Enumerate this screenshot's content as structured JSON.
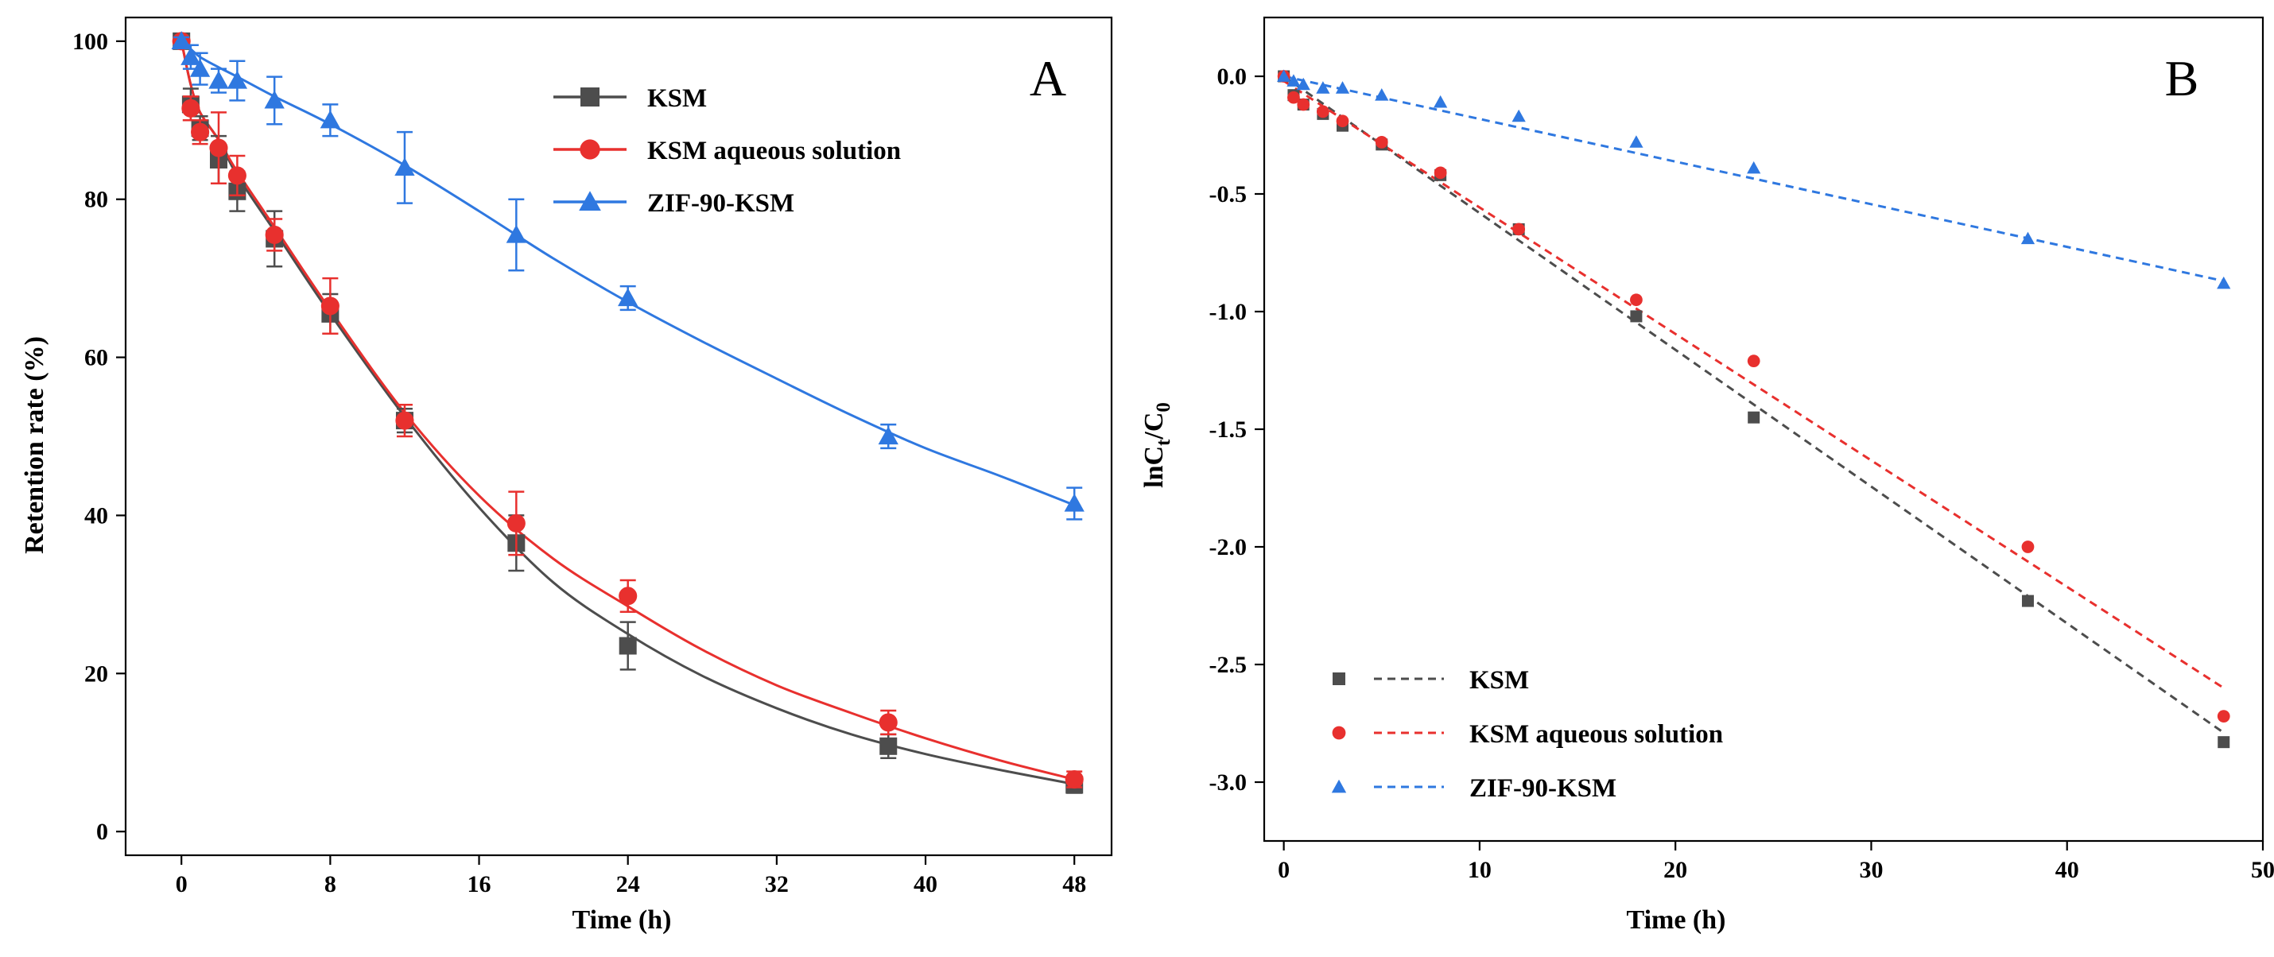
{
  "figure": {
    "caption": ""
  },
  "chart_data": [
    {
      "panel": "A",
      "type": "line",
      "xlabel": "Time (h)",
      "ylabel": "Retention rate (%)",
      "xlim": [
        -3,
        50
      ],
      "ylim": [
        -3,
        103
      ],
      "xticks": [
        0,
        8,
        16,
        24,
        32,
        40,
        48
      ],
      "yticks": [
        0,
        20,
        40,
        60,
        80,
        100
      ],
      "legend_position": "top-center",
      "series": [
        {
          "name": "KSM",
          "color": "#4d4d4d",
          "marker": "square",
          "x": [
            0,
            0.5,
            1,
            2,
            3,
            5,
            8,
            12,
            18,
            24,
            38,
            48
          ],
          "y": [
            100,
            92,
            89,
            85,
            81,
            75,
            65.5,
            52,
            36.5,
            23.5,
            10.8,
            5.9
          ],
          "err": [
            0.5,
            2,
            1.5,
            3,
            2.5,
            3.5,
            2.5,
            1.5,
            3.5,
            3,
            1.5,
            1.0
          ],
          "fit_x": [
            0,
            0.5,
            1,
            2,
            3,
            5,
            8,
            12,
            16,
            20,
            24,
            28,
            32,
            36,
            40,
            44,
            48
          ],
          "fit_y": [
            100,
            94.5,
            91,
            87.5,
            83,
            76,
            65.5,
            52.5,
            41,
            31.5,
            25,
            19.7,
            15.6,
            12.3,
            9.8,
            7.8,
            6.0
          ]
        },
        {
          "name": "KSM aqueous solution",
          "color": "#e8302e",
          "marker": "circle",
          "x": [
            0,
            0.5,
            1,
            2,
            3,
            5,
            8,
            12,
            18,
            24,
            38,
            48
          ],
          "y": [
            100,
            91.5,
            88.5,
            86.5,
            83,
            75.5,
            66.5,
            52,
            39,
            29.8,
            13.8,
            6.6
          ],
          "err": [
            0.5,
            1.5,
            1.5,
            4.5,
            2.5,
            2,
            3.5,
            2,
            4,
            2,
            1.5,
            1.0
          ],
          "fit_x": [
            0,
            0.5,
            1,
            2,
            3,
            5,
            8,
            12,
            16,
            20,
            24,
            28,
            32,
            36,
            40,
            44,
            48
          ],
          "fit_y": [
            100,
            94.5,
            91,
            87.5,
            83.5,
            76.5,
            66,
            53,
            42.5,
            34.5,
            28.5,
            23,
            18.5,
            15,
            11.8,
            9,
            6.6
          ]
        },
        {
          "name": "ZIF-90-KSM",
          "color": "#2f78e0",
          "marker": "triangle",
          "x": [
            0,
            0.5,
            1,
            2,
            3,
            5,
            8,
            12,
            18,
            24,
            38,
            48
          ],
          "y": [
            100,
            98,
            96.5,
            95,
            95,
            92.5,
            90,
            84,
            75.5,
            67.5,
            50,
            41.5
          ],
          "err": [
            0.5,
            1.5,
            2,
            1.5,
            2.5,
            3,
            2,
            4.5,
            4.5,
            1.5,
            1.5,
            2
          ],
          "fit_x": [
            0,
            0.5,
            1,
            2,
            3,
            5,
            8,
            12,
            16,
            20,
            24,
            28,
            32,
            36,
            40,
            44,
            48
          ],
          "fit_y": [
            100,
            99,
            98,
            96.7,
            95.5,
            93,
            89.5,
            84.3,
            78.5,
            72.5,
            67,
            62,
            57.3,
            52.7,
            48.5,
            45,
            41.3
          ]
        }
      ]
    },
    {
      "panel": "B",
      "type": "scatter",
      "xlabel": "Time (h)",
      "ylabel": "lnC",
      "ylabel_sub1": "t",
      "ylabel_mid": "/C",
      "ylabel_sub2": "0",
      "xlim": [
        -1,
        50
      ],
      "ylim": [
        -3.25,
        0.25
      ],
      "xticks": [
        0,
        10,
        20,
        30,
        40,
        50
      ],
      "yticks": [
        0.0,
        -0.5,
        -1.0,
        -1.5,
        -2.0,
        -2.5,
        -3.0
      ],
      "ytick_labels": [
        "0.0",
        "-0.5",
        "-1.0",
        "-1.5",
        "-2.0",
        "-2.5",
        "-3.0"
      ],
      "legend_position": "bottom-left",
      "series": [
        {
          "name": "KSM",
          "color": "#4d4d4d",
          "marker": "square",
          "x": [
            0,
            0.5,
            1,
            2,
            3,
            5,
            8,
            12,
            18,
            24,
            38,
            48
          ],
          "y": [
            0,
            -0.08,
            -0.12,
            -0.16,
            -0.21,
            -0.29,
            -0.42,
            -0.65,
            -1.02,
            -1.45,
            -2.23,
            -2.83
          ],
          "fit": [
            0,
            -2.79
          ]
        },
        {
          "name": "KSM aqueous solution",
          "color": "#e8302e",
          "marker": "circle",
          "x": [
            0,
            0.5,
            1,
            2,
            3,
            5,
            8,
            12,
            18,
            24,
            38,
            48
          ],
          "y": [
            0,
            -0.09,
            -0.12,
            -0.15,
            -0.19,
            -0.28,
            -0.41,
            -0.65,
            -0.95,
            -1.21,
            -2.0,
            -2.72
          ],
          "fit": [
            -0.02,
            -2.6
          ]
        },
        {
          "name": "ZIF-90-KSM",
          "color": "#2f78e0",
          "marker": "triangle",
          "x": [
            0,
            0.5,
            1,
            2,
            3,
            5,
            8,
            12,
            18,
            24,
            38,
            48
          ],
          "y": [
            0,
            -0.02,
            -0.035,
            -0.05,
            -0.05,
            -0.08,
            -0.11,
            -0.17,
            -0.28,
            -0.39,
            -0.69,
            -0.88
          ],
          "fit": [
            0,
            -0.87
          ]
        }
      ]
    }
  ]
}
